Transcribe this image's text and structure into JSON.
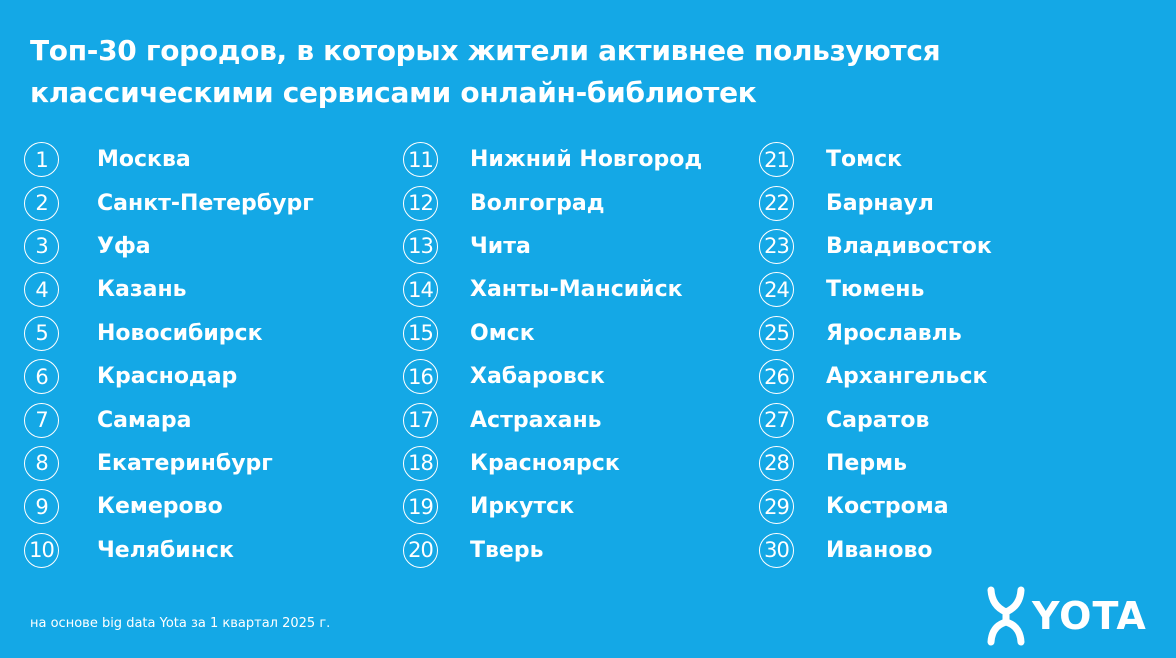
{
  "title": {
    "line1": "Топ-30 городов, в которых жители активнее пользуются",
    "line2": "классическими сервисами онлайн-библиотек"
  },
  "columns": [
    [
      {
        "num": "1",
        "city": "Москва"
      },
      {
        "num": "2",
        "city": "Санкт-Петербург"
      },
      {
        "num": "3",
        "city": "Уфа"
      },
      {
        "num": "4",
        "city": "Казань"
      },
      {
        "num": "5",
        "city": "Новосибирск"
      },
      {
        "num": "6",
        "city": "Краснодар"
      },
      {
        "num": "7",
        "city": "Самара"
      },
      {
        "num": "8",
        "city": "Екатеринбург"
      },
      {
        "num": "9",
        "city": "Кемерово"
      },
      {
        "num": "10",
        "city": "Челябинск"
      }
    ],
    [
      {
        "num": "11",
        "city": "Нижний Новгород"
      },
      {
        "num": "12",
        "city": "Волгоград"
      },
      {
        "num": "13",
        "city": "Чита"
      },
      {
        "num": "14",
        "city": "Ханты-Мансийск"
      },
      {
        "num": "15",
        "city": "Омск"
      },
      {
        "num": "16",
        "city": "Хабаровск"
      },
      {
        "num": "17",
        "city": "Астрахань"
      },
      {
        "num": "18",
        "city": "Красноярск"
      },
      {
        "num": "19",
        "city": "Иркутск"
      },
      {
        "num": "20",
        "city": "Тверь"
      }
    ],
    [
      {
        "num": "21",
        "city": "Томск"
      },
      {
        "num": "22",
        "city": "Барнаул"
      },
      {
        "num": "23",
        "city": "Владивосток"
      },
      {
        "num": "24",
        "city": "Тюмень"
      },
      {
        "num": "25",
        "city": "Ярославль"
      },
      {
        "num": "26",
        "city": "Архангельск"
      },
      {
        "num": "27",
        "city": "Саратов"
      },
      {
        "num": "28",
        "city": "Пермь"
      },
      {
        "num": "29",
        "city": "Кострома"
      },
      {
        "num": "30",
        "city": "Иваново"
      }
    ]
  ],
  "footnote": "на основе big data Yota за 1 квартал 2025 г.",
  "logo": {
    "text": "YOTA",
    "icon": "yota-logo-icon"
  },
  "colors": {
    "background": "#14a8e6",
    "text": "#ffffff"
  }
}
